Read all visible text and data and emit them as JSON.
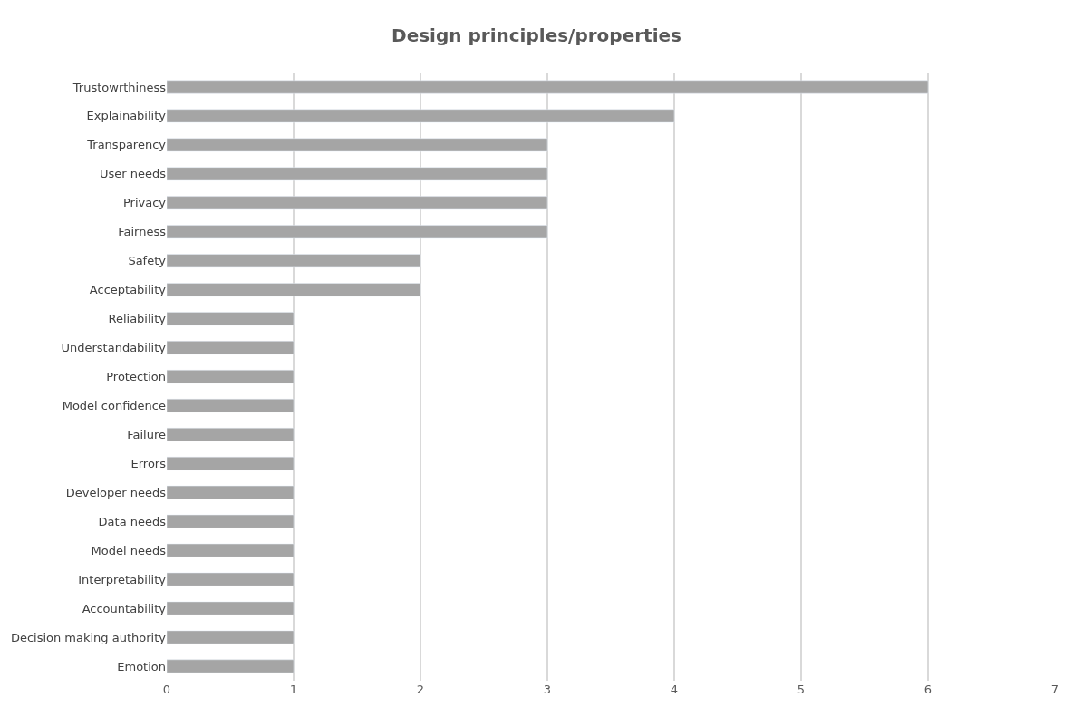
{
  "chart_data": {
    "type": "bar",
    "orientation": "horizontal",
    "title": "Design principles/properties",
    "categories": [
      "Trustowrthiness",
      "Explainability",
      "Transparency",
      "User needs",
      "Privacy",
      "Fairness",
      "Safety",
      "Acceptability",
      "Reliability",
      "Understandability",
      "Protection",
      "Model confidence",
      "Failure",
      "Errors",
      "Developer needs",
      "Data needs",
      "Model needs",
      "Interpretability",
      "Accountability",
      "Decision making authority",
      "Emotion"
    ],
    "values": [
      6,
      4,
      3,
      3,
      3,
      3,
      2,
      2,
      1,
      1,
      1,
      1,
      1,
      1,
      1,
      1,
      1,
      1,
      1,
      1,
      1
    ],
    "color": "#a5a5a5",
    "xlim": [
      0,
      7
    ],
    "xticks": [
      0,
      1,
      2,
      3,
      4,
      5,
      6,
      7
    ],
    "grid": "x"
  }
}
